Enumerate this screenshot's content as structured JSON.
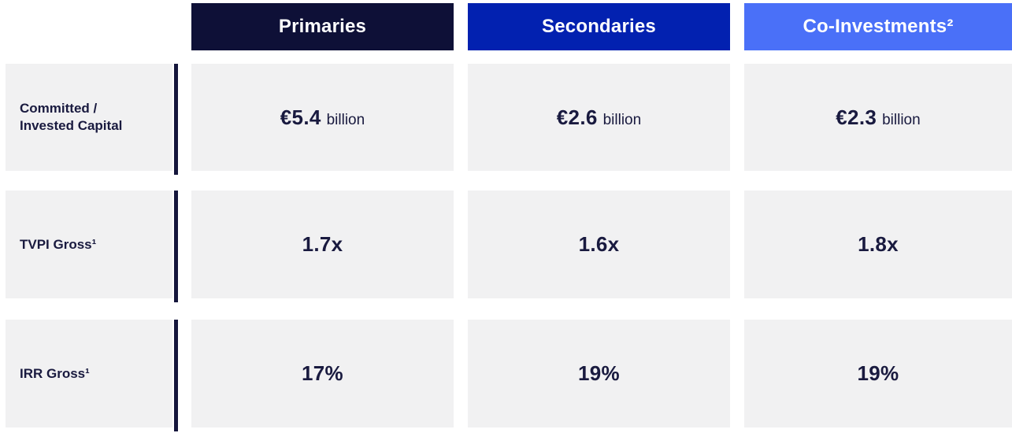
{
  "table": {
    "header": [
      {
        "label": "Primaries",
        "bg": "#0e1037"
      },
      {
        "label": "Secondaries",
        "bg": "#0221b0"
      },
      {
        "label": "Co-Investments²",
        "bg": "#4a70f8"
      }
    ],
    "rows": [
      {
        "label": "Committed /\nInvested Capital",
        "cells": [
          {
            "value": "€5.4",
            "suffix": "billion"
          },
          {
            "value": "€2.6",
            "suffix": "billion"
          },
          {
            "value": "€2.3",
            "suffix": "billion"
          }
        ]
      },
      {
        "label": "TVPI Gross¹",
        "cells": [
          {
            "value": "1.7x"
          },
          {
            "value": "1.6x"
          },
          {
            "value": "1.8x"
          }
        ]
      },
      {
        "label": "IRR Gross¹",
        "cells": [
          {
            "value": "17%"
          },
          {
            "value": "19%"
          },
          {
            "value": "19%"
          }
        ]
      }
    ]
  },
  "colors": {
    "primaries_header_bg": "#0e1037",
    "secondaries_header_bg": "#0221b0",
    "co_investments_header_bg": "#4a70f8",
    "header_text": "#ffffff",
    "cell_bg": "#f1f1f2",
    "value_text": "#191a3f",
    "divider": "#15163c",
    "page_bg": "#ffffff"
  },
  "chart_data": {
    "type": "table",
    "columns": [
      "Primaries",
      "Secondaries",
      "Co-Investments²"
    ],
    "rows": [
      {
        "label": "Committed / Invested Capital",
        "values": [
          "€5.4 billion",
          "€2.6 billion",
          "€2.3 billion"
        ]
      },
      {
        "label": "TVPI Gross¹",
        "values": [
          "1.7x",
          "1.6x",
          "1.8x"
        ]
      },
      {
        "label": "IRR Gross¹",
        "values": [
          "17%",
          "19%",
          "19%"
        ]
      }
    ],
    "numeric": {
      "committed_invested_capital_eur_billion": [
        5.4,
        2.6,
        2.3
      ],
      "tvpi_gross_multiple": [
        1.7,
        1.6,
        1.8
      ],
      "irr_gross_percent": [
        17,
        19,
        19
      ]
    }
  }
}
